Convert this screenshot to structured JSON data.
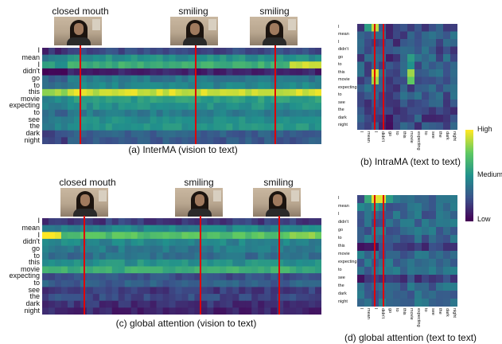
{
  "panels": {
    "a": {
      "caption": "(a)  InterMA (vision to text)",
      "frames": [
        "closed mouth",
        "smiling",
        "smiling"
      ],
      "rows": [
        "I",
        "mean",
        "I",
        "didn't",
        "go",
        "to",
        "this",
        "movie",
        "expecting",
        "to",
        "see",
        "the",
        "dark",
        "night"
      ]
    },
    "b": {
      "caption": "(b)  IntraMA (text to text)",
      "rows": [
        "I",
        "mean",
        "I",
        "didn't",
        "go",
        "to",
        "this",
        "movie",
        "expecting",
        "to",
        "see",
        "the",
        "dark",
        "night"
      ],
      "cols": [
        "I",
        "mean",
        "I",
        "didn't",
        "go",
        "to",
        "this",
        "movie",
        "expecting",
        "to",
        "see",
        "the",
        "dark",
        "night"
      ]
    },
    "c": {
      "caption": "(c)  global attention (vision to text)",
      "frames": [
        "closed mouth",
        "smiling",
        "smiling"
      ],
      "rows": [
        "I",
        "mean",
        "I",
        "didn't",
        "go",
        "to",
        "this",
        "movie",
        "expecting",
        "to",
        "see",
        "the",
        "dark",
        "night"
      ]
    },
    "d": {
      "caption": "(d)  global attention (text to text)",
      "rows": [
        "I",
        "mean",
        "I",
        "didn't",
        "go",
        "to",
        "this",
        "movie",
        "expecting",
        "to",
        "see",
        "the",
        "dark",
        "night"
      ],
      "cols": [
        "I",
        "mean",
        "I",
        "didn't",
        "go",
        "to",
        "this",
        "movie",
        "expecting",
        "to",
        "see",
        "the",
        "dark",
        "night"
      ]
    }
  },
  "colorbar": {
    "high": "High",
    "medium": "Medium",
    "low": "Low"
  },
  "colors": {
    "highlight_line": "#e00000",
    "colormap": [
      "#440154",
      "#3b528b",
      "#21918c",
      "#5ec962",
      "#fde725"
    ]
  }
}
